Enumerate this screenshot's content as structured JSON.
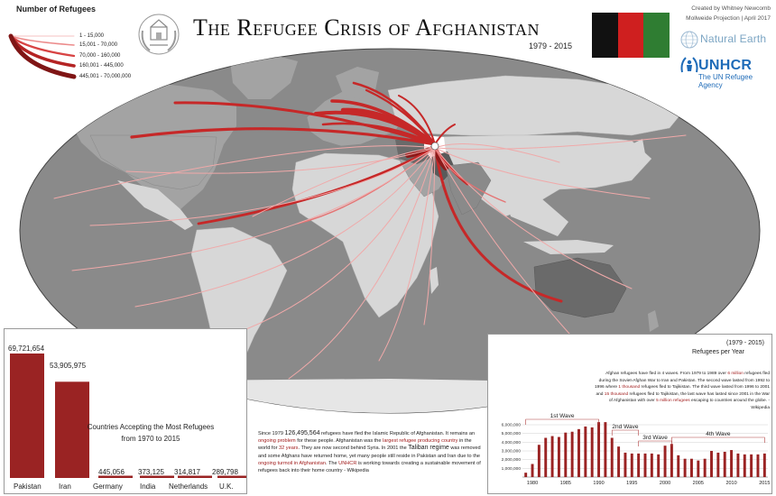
{
  "title": "The Refugee Crisis of Afghanistan",
  "years": "1979 - 2015",
  "credits": {
    "line1": "Created by Whitney Newcomb",
    "line2": "Mollweide Projection | April 2017",
    "natural_earth": "Natural Earth",
    "unhcr": "UNHCR",
    "unhcr_sub": "The UN Refugee Agency"
  },
  "legend": {
    "title": "Number of Refugees",
    "classes": [
      "1 - 15,000",
      "15,001 - 70,000",
      "70,000 - 160,000",
      "160,001 - 445,000",
      "445,001 - 70,000,000"
    ]
  },
  "colors": {
    "ocean": "#8a8a8a",
    "land_light": "#d7d7d7",
    "land_mid": "#a3a3a3",
    "flow_dark": "#8e1a1a",
    "flow_red": "#c62828",
    "flow_light": "#f0a9a9",
    "bar": "#9a2323",
    "flag_black": "#111111",
    "flag_red": "#cf1f1f",
    "flag_green": "#2f7d32"
  },
  "top_countries": {
    "title_line1": "Countries Accepting the Most Refugees",
    "title_line2": "from 1970 to 2015",
    "items": [
      {
        "country": "Pakistan",
        "value": 69721654,
        "label": "69,721,654"
      },
      {
        "country": "Iran",
        "value": 53905975,
        "label": "53,905,975"
      },
      {
        "country": "Germany",
        "value": 445056,
        "label": "445,056"
      },
      {
        "country": "India",
        "value": 373125,
        "label": "373,125"
      },
      {
        "country": "Netherlands",
        "value": 314817,
        "label": "314,817"
      },
      {
        "country": "U.K.",
        "value": 289798,
        "label": "289,798"
      }
    ]
  },
  "description": {
    "p1": "Since 1979 ",
    "total": "126,495,564",
    "p2": " refugees have fled the Islamic Republic of Afghanistan. It remains an ",
    "h1": "ongoing problem",
    "p3": " for these people. Afghanistan was the ",
    "h2": "largest refugee producing country",
    "p4": " in the world for ",
    "h3": "32 years",
    "p5": ". They are now second behind Syria. In 2001 the ",
    "taliban": "Taliban regime",
    "p6": " was removed and some Afghans have returned home, yet many people still reside in Pakistan and Iran due to the ",
    "h4": "ongoing turmoil in Afghanistan",
    "p7": ". The ",
    "h5": "UNHCR",
    "p8": " is working towards creating a sustainable movement of refugees back into their home country - Wikipedia"
  },
  "per_year": {
    "years_label": "(1979 - 2015)",
    "title": "Refugees per Year",
    "text": {
      "a": "Afghan refugees have fled in 4 waves. From 1979 to 1989 over ",
      "h1": "6 million",
      "b": " refugees fled during the Soviet-Afghan War to Iran and Pakistan. The second wave lasted from 1992 to 1996 where ",
      "h2": "1 thousand",
      "c": " refugees fled to Tajikistan. The third wave lasted from 1996 to 2001 and ",
      "h3": "15 thousand",
      "d": " refugees fled to Tajikistan, the last wave has lasted since 2001 in the War of Afghanistan with over ",
      "h4": "5 million refugees",
      "e": " escaping to countries around the globe. -Wikipedia"
    }
  },
  "chart_data": {
    "type": "bar",
    "title": "Refugees per Year",
    "x": [
      1979,
      1980,
      1981,
      1982,
      1983,
      1984,
      1985,
      1986,
      1987,
      1988,
      1989,
      1990,
      1991,
      1992,
      1993,
      1994,
      1995,
      1996,
      1997,
      1998,
      1999,
      2000,
      2001,
      2002,
      2003,
      2004,
      2005,
      2006,
      2007,
      2008,
      2009,
      2010,
      2011,
      2012,
      2013,
      2014,
      2015
    ],
    "values": [
      500000,
      1500000,
      3700000,
      4500000,
      4700000,
      4600000,
      5100000,
      5200000,
      5500000,
      5800000,
      5700000,
      6300000,
      6300000,
      4500000,
      3500000,
      2800000,
      2700000,
      2700000,
      2700000,
      2700000,
      2600000,
      3600000,
      3800000,
      2500000,
      2100000,
      2100000,
      1900000,
      2100000,
      3000000,
      2800000,
      2900000,
      3100000,
      2700000,
      2600000,
      2600000,
      2600000,
      2700000
    ],
    "ylim": [
      0,
      6000000
    ],
    "y_ticks": [
      "1,000,000",
      "2,000,000",
      "3,000,000",
      "4,000,000",
      "5,000,000",
      "6,000,000"
    ],
    "x_ticks": [
      "1980",
      "1985",
      "1990",
      "1995",
      "2000",
      "2005",
      "2010",
      "2015"
    ],
    "waves": [
      "1st Wave",
      "2nd Wave",
      "3rd Wave",
      "4th Wave"
    ]
  }
}
